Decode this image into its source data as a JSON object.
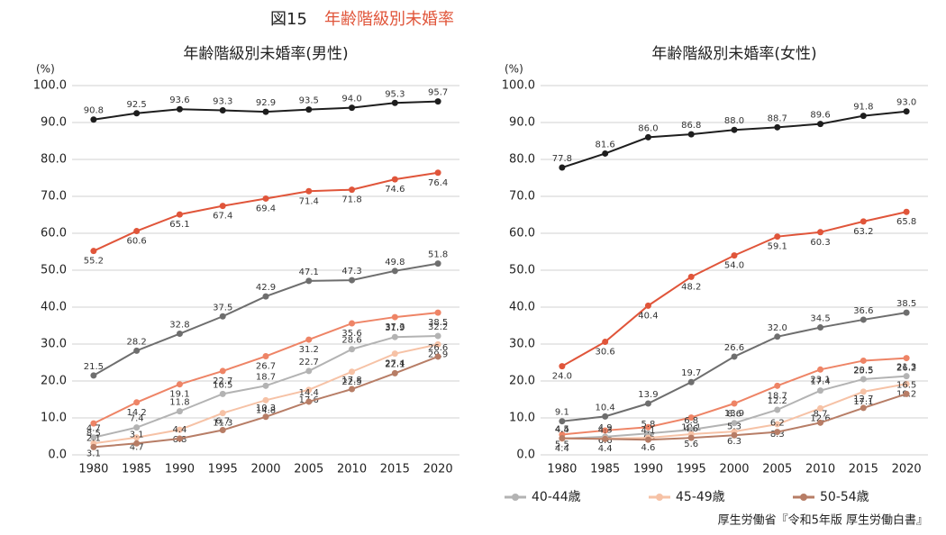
{
  "title": "図15",
  "subtitle": "年齢階級別未婚率",
  "source": "厚生労働省『令和5年版 厚生労働白書』",
  "chart_data": [
    {
      "type": "line",
      "title": "年齢階級別未婚率(男性)",
      "y_label": "(%)",
      "categories": [
        "1980",
        "1985",
        "1990",
        "1995",
        "2000",
        "2005",
        "2010",
        "2015",
        "2020"
      ],
      "ylim": [
        0,
        100
      ],
      "yticks": [
        {
          "value": 0,
          "label": "0.0"
        },
        {
          "value": 10,
          "label": "10.0"
        },
        {
          "value": 20,
          "label": "20.0"
        },
        {
          "value": 30,
          "label": "30.0"
        },
        {
          "value": 40,
          "label": "40.0"
        },
        {
          "value": 50,
          "label": "50.0"
        },
        {
          "value": 60,
          "label": "60.0"
        },
        {
          "value": 70,
          "label": "70.0"
        },
        {
          "value": 80,
          "label": "80.0"
        },
        {
          "value": 90,
          "label": "90.0"
        },
        {
          "value": 100,
          "label": "100.0"
        }
      ],
      "grid": true,
      "series": [
        {
          "color": "#1e1e1e",
          "values": [
            90.8,
            92.5,
            93.6,
            93.3,
            92.9,
            93.5,
            94.0,
            95.3,
            95.7
          ],
          "value_labels": [
            "90.8",
            "92.5",
            "93.6",
            "93.3",
            "92.9",
            "93.5",
            "94.0",
            "95.3",
            "95.7"
          ]
        },
        {
          "color": "#e0553a",
          "values": [
            55.2,
            60.6,
            65.1,
            67.4,
            69.4,
            71.4,
            71.8,
            74.6,
            76.4
          ],
          "value_labels": [
            "55.2",
            "60.6",
            "65.1",
            "67.4",
            "69.4",
            "71.4",
            "71.8",
            "74.6",
            "76.4"
          ]
        },
        {
          "color": "#6e6e6e",
          "values": [
            21.5,
            28.2,
            32.8,
            37.5,
            42.9,
            47.1,
            47.3,
            49.8,
            51.8
          ],
          "value_labels": [
            "21.5",
            "28.2",
            "32.8",
            "37.5",
            "42.9",
            "47.1",
            "47.3",
            "49.8",
            "51.8"
          ]
        },
        {
          "color": "#ee8466",
          "values": [
            8.5,
            14.2,
            19.1,
            22.7,
            26.7,
            31.2,
            35.6,
            37.3,
            38.5
          ],
          "value_labels": [
            "8.5",
            "14.2",
            "19.1",
            "22.7",
            "26.7",
            "31.2",
            "35.6",
            "37.3",
            "38.5"
          ]
        },
        {
          "name": "40-44歳",
          "color": "#b3b3b3",
          "values": [
            4.7,
            7.4,
            11.8,
            16.5,
            18.7,
            22.7,
            28.6,
            31.9,
            32.2
          ],
          "value_labels": [
            "4.7",
            "7.4",
            "11.8",
            "16.5",
            "18.7",
            "22.7",
            "28.6",
            "31.9",
            "32.2"
          ]
        },
        {
          "name": "45-49歳",
          "color": "#f6c2a6",
          "values": [
            3.1,
            4.7,
            6.8,
            11.3,
            14.8,
            17.6,
            22.5,
            27.4,
            29.9
          ],
          "value_labels": [
            "3.1",
            "4.7",
            "6.8",
            "11.3",
            "14.8",
            "17.6",
            "22.5",
            "27.4",
            "29.9"
          ]
        },
        {
          "name": "50-54歳",
          "color": "#b77d66",
          "values": [
            2.1,
            3.1,
            4.4,
            6.7,
            10.3,
            14.4,
            17.8,
            22.1,
            26.6
          ],
          "value_labels": [
            "2.1",
            "3.1",
            "4.4",
            "6.7",
            "10.3",
            "14.4",
            "17.8",
            "22.1",
            "26.6"
          ]
        }
      ]
    },
    {
      "type": "line",
      "title": "年齢階級別未婚率(女性)",
      "y_label": "(%)",
      "categories": [
        "1980",
        "1985",
        "1990",
        "1995",
        "2000",
        "2005",
        "2010",
        "2015",
        "2020"
      ],
      "ylim": [
        0,
        100
      ],
      "yticks": [
        {
          "value": 0,
          "label": "0.0"
        },
        {
          "value": 10,
          "label": "10.0"
        },
        {
          "value": 20,
          "label": "20.0"
        },
        {
          "value": 30,
          "label": "30.0"
        },
        {
          "value": 40,
          "label": "40.0"
        },
        {
          "value": 50,
          "label": "50.0"
        },
        {
          "value": 60,
          "label": "60.0"
        },
        {
          "value": 70,
          "label": "70.0"
        },
        {
          "value": 80,
          "label": "80.0"
        },
        {
          "value": 90,
          "label": "90.0"
        },
        {
          "value": 100,
          "label": "100.0"
        }
      ],
      "grid": true,
      "series": [
        {
          "color": "#1e1e1e",
          "values": [
            77.8,
            81.6,
            86.0,
            86.8,
            88.0,
            88.7,
            89.6,
            91.8,
            93.0
          ],
          "value_labels": [
            "77.8",
            "81.6",
            "86.0",
            "86.8",
            "88.0",
            "88.7",
            "89.6",
            "91.8",
            "93.0"
          ]
        },
        {
          "color": "#e0553a",
          "values": [
            24.0,
            30.6,
            40.4,
            48.2,
            54.0,
            59.1,
            60.3,
            63.2,
            65.8
          ],
          "value_labels": [
            "24.0",
            "30.6",
            "40.4",
            "48.2",
            "54.0",
            "59.1",
            "60.3",
            "63.2",
            "65.8"
          ]
        },
        {
          "color": "#6e6e6e",
          "values": [
            9.1,
            10.4,
            13.9,
            19.7,
            26.6,
            32.0,
            34.5,
            36.6,
            38.5
          ],
          "value_labels": [
            "9.1",
            "10.4",
            "13.9",
            "19.7",
            "26.6",
            "32.0",
            "34.5",
            "36.6",
            "38.5"
          ]
        },
        {
          "color": "#ee8466",
          "values": [
            5.5,
            6.6,
            7.5,
            10.1,
            13.9,
            18.7,
            23.1,
            25.5,
            26.2
          ],
          "value_labels": [
            "5.5",
            "6.6",
            "7.5",
            "10.1",
            "13.9",
            "18.7",
            "23.1",
            "25.5",
            "26.2"
          ]
        },
        {
          "color": "#b3b3b3",
          "values": [
            4.4,
            4.9,
            5.8,
            6.8,
            8.6,
            12.2,
            17.4,
            20.5,
            21.3
          ],
          "value_labels": [
            "4.4",
            "4.9",
            "5.8",
            "6.8",
            "8.6",
            "12.2",
            "17.4",
            "20.5",
            "21.3"
          ]
        },
        {
          "color": "#f6c2a6",
          "values": [
            4.4,
            4.4,
            4.6,
            5.6,
            6.3,
            8.3,
            12.6,
            17.1,
            19.2
          ],
          "value_labels": [
            "4.4",
            "4.4",
            "4.6",
            "5.6",
            "6.3",
            "8.3",
            "12.6",
            "17.1",
            "19.2"
          ]
        },
        {
          "color": "#b77d66",
          "values": [
            4.5,
            4.3,
            4.1,
            4.6,
            5.3,
            6.2,
            8.7,
            12.7,
            16.5
          ],
          "value_labels": [
            "4.5",
            "4.3",
            "4.1",
            "4.6",
            "5.3",
            "6.2",
            "8.7",
            "12.7",
            "16.5"
          ]
        }
      ]
    }
  ]
}
